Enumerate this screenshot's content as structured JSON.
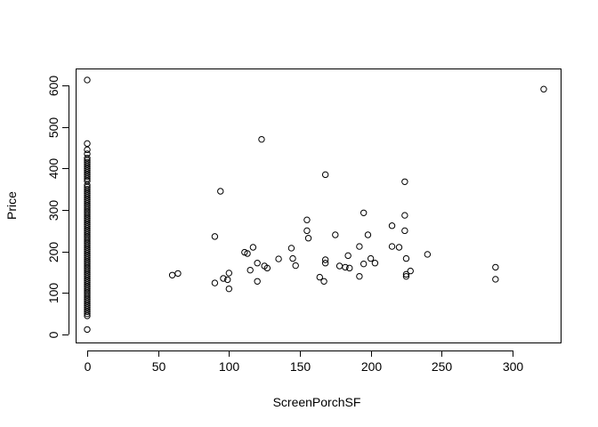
{
  "chart_data": {
    "type": "scatter",
    "title": "",
    "xlabel": "ScreenPorchSF",
    "ylabel": "Price",
    "xlim": [
      0,
      322
    ],
    "ylim": [
      10,
      615
    ],
    "xticks": [
      0,
      50,
      100,
      150,
      200,
      250,
      300
    ],
    "yticks": [
      0,
      100,
      200,
      300,
      400,
      500,
      600
    ],
    "grid": false,
    "legend": "none",
    "marker": "open-circle",
    "points": [
      [
        0,
        12
      ],
      [
        0,
        45
      ],
      [
        0,
        50
      ],
      [
        0,
        55
      ],
      [
        0,
        60
      ],
      [
        0,
        65
      ],
      [
        0,
        70
      ],
      [
        0,
        75
      ],
      [
        0,
        80
      ],
      [
        0,
        85
      ],
      [
        0,
        90
      ],
      [
        0,
        95
      ],
      [
        0,
        100
      ],
      [
        0,
        105
      ],
      [
        0,
        110
      ],
      [
        0,
        115
      ],
      [
        0,
        120
      ],
      [
        0,
        125
      ],
      [
        0,
        130
      ],
      [
        0,
        135
      ],
      [
        0,
        140
      ],
      [
        0,
        145
      ],
      [
        0,
        150
      ],
      [
        0,
        155
      ],
      [
        0,
        160
      ],
      [
        0,
        165
      ],
      [
        0,
        170
      ],
      [
        0,
        175
      ],
      [
        0,
        180
      ],
      [
        0,
        185
      ],
      [
        0,
        190
      ],
      [
        0,
        195
      ],
      [
        0,
        200
      ],
      [
        0,
        205
      ],
      [
        0,
        210
      ],
      [
        0,
        215
      ],
      [
        0,
        220
      ],
      [
        0,
        225
      ],
      [
        0,
        230
      ],
      [
        0,
        235
      ],
      [
        0,
        240
      ],
      [
        0,
        245
      ],
      [
        0,
        250
      ],
      [
        0,
        255
      ],
      [
        0,
        260
      ],
      [
        0,
        265
      ],
      [
        0,
        270
      ],
      [
        0,
        275
      ],
      [
        0,
        280
      ],
      [
        0,
        285
      ],
      [
        0,
        290
      ],
      [
        0,
        295
      ],
      [
        0,
        300
      ],
      [
        0,
        305
      ],
      [
        0,
        310
      ],
      [
        0,
        315
      ],
      [
        0,
        320
      ],
      [
        0,
        325
      ],
      [
        0,
        330
      ],
      [
        0,
        335
      ],
      [
        0,
        340
      ],
      [
        0,
        345
      ],
      [
        0,
        350
      ],
      [
        0,
        355
      ],
      [
        0,
        360
      ],
      [
        0,
        370
      ],
      [
        0,
        375
      ],
      [
        0,
        380
      ],
      [
        0,
        385
      ],
      [
        0,
        390
      ],
      [
        0,
        395
      ],
      [
        0,
        400
      ],
      [
        0,
        405
      ],
      [
        0,
        410
      ],
      [
        0,
        415
      ],
      [
        0,
        420
      ],
      [
        0,
        425
      ],
      [
        0,
        435
      ],
      [
        0,
        445
      ],
      [
        0,
        460
      ],
      [
        0,
        613
      ],
      [
        60,
        143
      ],
      [
        64,
        147
      ],
      [
        90,
        124
      ],
      [
        90,
        236
      ],
      [
        94,
        345
      ],
      [
        96,
        135
      ],
      [
        99,
        132
      ],
      [
        100,
        110
      ],
      [
        100,
        148
      ],
      [
        111,
        198
      ],
      [
        113,
        195
      ],
      [
        115,
        155
      ],
      [
        117,
        210
      ],
      [
        120,
        128
      ],
      [
        120,
        172
      ],
      [
        125,
        165
      ],
      [
        127,
        160
      ],
      [
        123,
        470
      ],
      [
        135,
        182
      ],
      [
        144,
        208
      ],
      [
        145,
        183
      ],
      [
        147,
        166
      ],
      [
        155,
        250
      ],
      [
        155,
        276
      ],
      [
        156,
        232
      ],
      [
        164,
        138
      ],
      [
        167,
        128
      ],
      [
        168,
        172
      ],
      [
        168,
        180
      ],
      [
        168,
        385
      ],
      [
        175,
        240
      ],
      [
        178,
        165
      ],
      [
        182,
        162
      ],
      [
        184,
        190
      ],
      [
        185,
        160
      ],
      [
        192,
        212
      ],
      [
        192,
        140
      ],
      [
        195,
        170
      ],
      [
        195,
        293
      ],
      [
        198,
        240
      ],
      [
        200,
        183
      ],
      [
        203,
        172
      ],
      [
        215,
        212
      ],
      [
        215,
        262
      ],
      [
        220,
        210
      ],
      [
        224,
        250
      ],
      [
        224,
        287
      ],
      [
        224,
        368
      ],
      [
        225,
        183
      ],
      [
        225,
        145
      ],
      [
        225,
        140
      ],
      [
        228,
        153
      ],
      [
        240,
        193
      ],
      [
        288,
        133
      ],
      [
        288,
        162
      ],
      [
        322,
        591
      ]
    ]
  }
}
